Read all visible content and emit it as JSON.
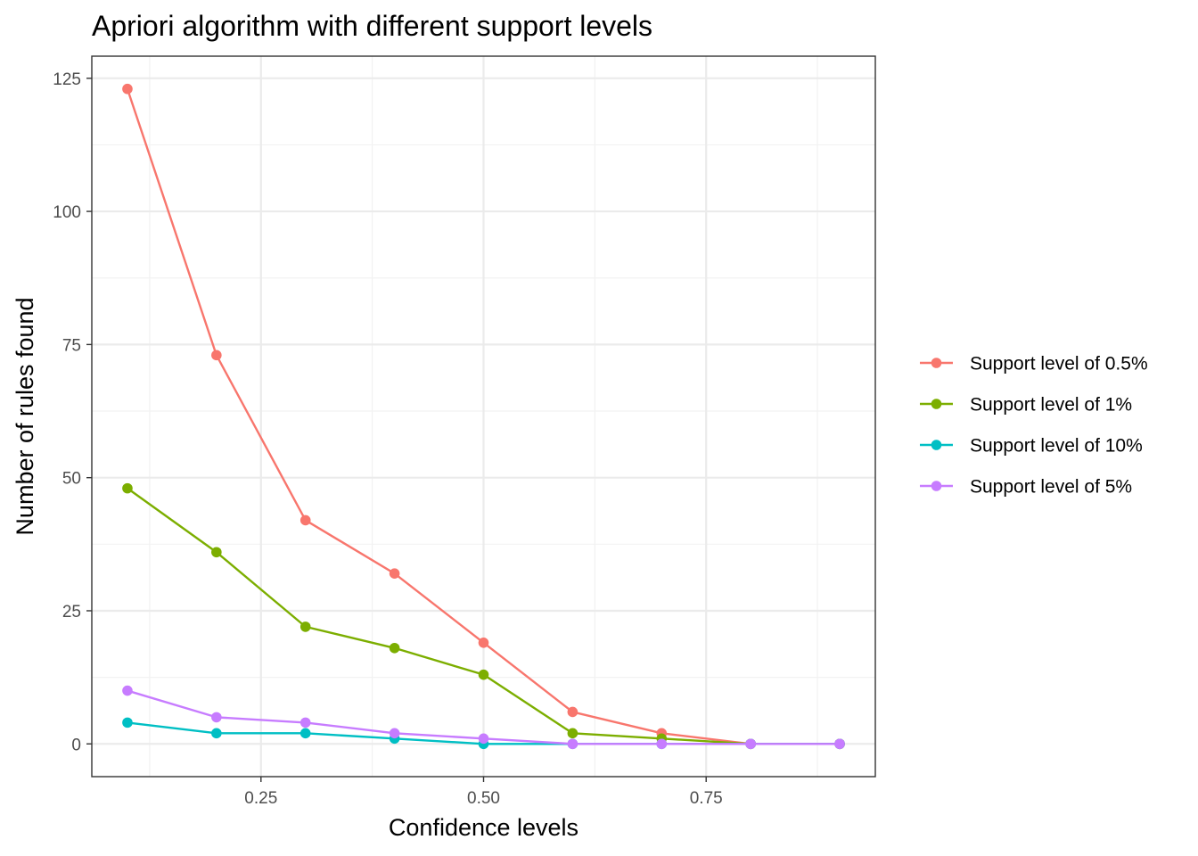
{
  "chart_data": {
    "type": "line",
    "title": "Apriori algorithm with different support levels",
    "xlabel": "Confidence levels",
    "ylabel": "Number of rules found",
    "x": [
      0.1,
      0.2,
      0.3,
      0.4,
      0.5,
      0.6,
      0.7,
      0.8,
      0.9
    ],
    "xlim": [
      0.06,
      0.94
    ],
    "ylim": [
      -6.15,
      129.15
    ],
    "x_ticks": [
      0.25,
      0.5,
      0.75
    ],
    "x_tick_labels": [
      "0.25",
      "0.50",
      "0.75"
    ],
    "y_ticks": [
      0,
      25,
      50,
      75,
      100,
      125
    ],
    "y_tick_labels": [
      "0",
      "25",
      "50",
      "75",
      "100",
      "125"
    ],
    "grid": true,
    "legend_position": "right",
    "series": [
      {
        "name": "Support level of 0.5%",
        "color": "#F8766D",
        "values": [
          123,
          73,
          42,
          32,
          19,
          6,
          2,
          0,
          0
        ]
      },
      {
        "name": "Support level of 1%",
        "color": "#7CAE00",
        "values": [
          48,
          36,
          22,
          18,
          13,
          2,
          1,
          0,
          0
        ]
      },
      {
        "name": "Support level of 10%",
        "color": "#00BFC4",
        "values": [
          4,
          2,
          2,
          1,
          0,
          0,
          0,
          0,
          0
        ]
      },
      {
        "name": "Support level of 5%",
        "color": "#C77CFF",
        "values": [
          10,
          5,
          4,
          2,
          1,
          0,
          0,
          0,
          0
        ]
      }
    ]
  }
}
